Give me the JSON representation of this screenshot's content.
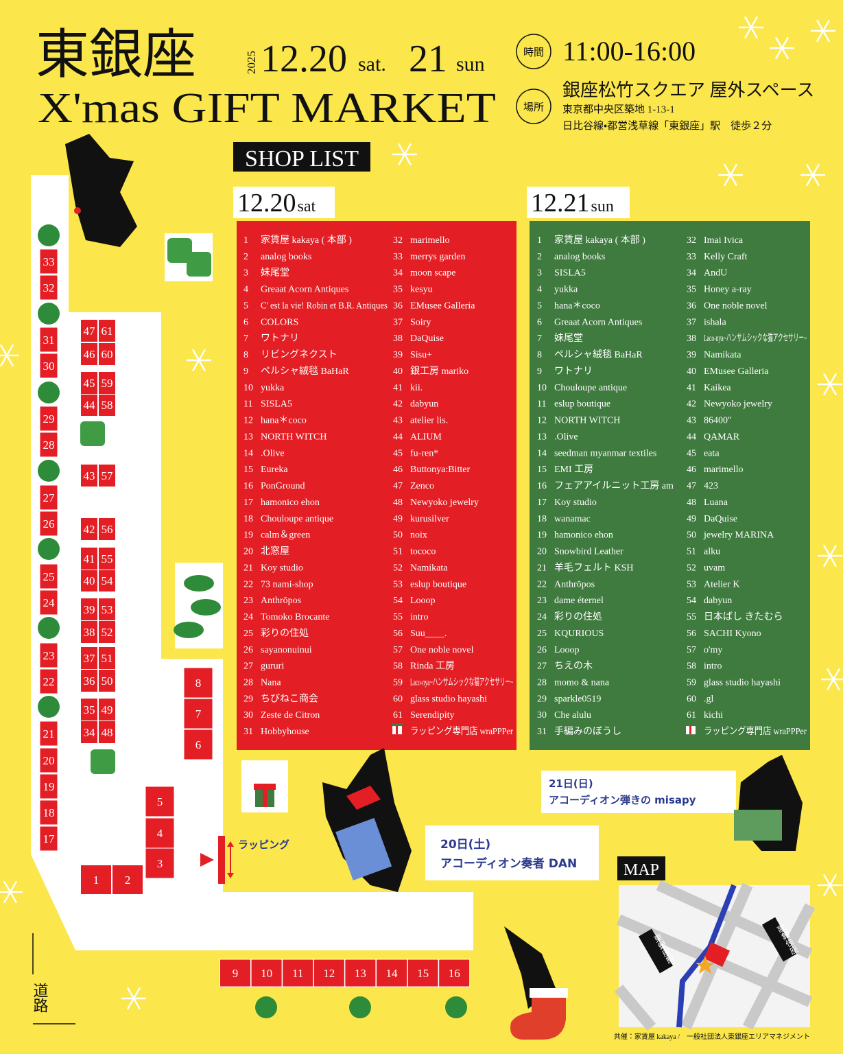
{
  "header": {
    "title_ja": "東銀座",
    "title_en": "X'mas GIFT MARKET",
    "year": "2025",
    "date1": "12.20",
    "dow1": "sat.",
    "date2": "21",
    "dow2": "sun",
    "time_label": "時間",
    "time": "11:00-16:00",
    "place_label": "場所",
    "venue": "銀座松竹スクエア 屋外スペース",
    "address": "東京都中央区築地 1-13-1",
    "access": "日比谷線・都営浅草線「東銀座」駅　徒歩２分"
  },
  "shop_list": {
    "heading": "SHOP LIST",
    "days": [
      {
        "date": "12.20",
        "dow": "sat",
        "shops": [
          {
            "no": 1,
            "name": "家賃屋 kakaya ( 本部 )"
          },
          {
            "no": 2,
            "name": "analog books"
          },
          {
            "no": 3,
            "name": "妹尾堂"
          },
          {
            "no": 4,
            "name": "Greaat Acorn Antiques"
          },
          {
            "no": 5,
            "name": "C' est la vie! Robin et B.R. Antiques"
          },
          {
            "no": 6,
            "name": "COLORS"
          },
          {
            "no": 7,
            "name": "ワトナリ"
          },
          {
            "no": 8,
            "name": "リビングネクスト"
          },
          {
            "no": 9,
            "name": "ペルシャ絨毯 BaHaR"
          },
          {
            "no": 10,
            "name": "yukka"
          },
          {
            "no": 11,
            "name": "SISLA5"
          },
          {
            "no": 12,
            "name": "hana＊coco"
          },
          {
            "no": 13,
            "name": "NORTH WITCH"
          },
          {
            "no": 14,
            "name": ".Olive"
          },
          {
            "no": 15,
            "name": "Eureka"
          },
          {
            "no": 16,
            "name": "PonGround"
          },
          {
            "no": 17,
            "name": "hamonico ehon"
          },
          {
            "no": 18,
            "name": "Chouloupe antique"
          },
          {
            "no": 19,
            "name": "calm＆green"
          },
          {
            "no": 20,
            "name": "北窓屋"
          },
          {
            "no": 21,
            "name": "Koy studio"
          },
          {
            "no": 22,
            "name": "73 nami-shop"
          },
          {
            "no": 23,
            "name": "Anthrōpos"
          },
          {
            "no": 24,
            "name": "Tomoko Brocante"
          },
          {
            "no": 25,
            "name": "彩りの住処"
          },
          {
            "no": 26,
            "name": "sayanonuinui"
          },
          {
            "no": 27,
            "name": "gururi"
          },
          {
            "no": 28,
            "name": "Nana"
          },
          {
            "no": 29,
            "name": "ちびねこ商会"
          },
          {
            "no": 30,
            "name": "Zeste de Citron"
          },
          {
            "no": 31,
            "name": "Hobbyhouse"
          },
          {
            "no": 32,
            "name": "marimello"
          },
          {
            "no": 33,
            "name": "merrys garden"
          },
          {
            "no": 34,
            "name": "moon scape"
          },
          {
            "no": 35,
            "name": "kesyu"
          },
          {
            "no": 36,
            "name": "EMusee Galleria"
          },
          {
            "no": 37,
            "name": "Soiry"
          },
          {
            "no": 38,
            "name": "DaQuise"
          },
          {
            "no": 39,
            "name": "Sisu+"
          },
          {
            "no": 40,
            "name": "銀工房 mariko"
          },
          {
            "no": 41,
            "name": "kii."
          },
          {
            "no": 42,
            "name": "dabyun"
          },
          {
            "no": 43,
            "name": "atelier lis."
          },
          {
            "no": 44,
            "name": "ALIUM"
          },
          {
            "no": 45,
            "name": "fu-ren*"
          },
          {
            "no": 46,
            "name": "Buttonya:Bitter"
          },
          {
            "no": 47,
            "name": "Zenco"
          },
          {
            "no": 48,
            "name": "Newyoko jewelry"
          },
          {
            "no": 49,
            "name": "kurusilver"
          },
          {
            "no": 50,
            "name": "noix"
          },
          {
            "no": 51,
            "name": "tococo"
          },
          {
            "no": 52,
            "name": "Namikata"
          },
          {
            "no": 53,
            "name": "eslup boutique"
          },
          {
            "no": 54,
            "name": "Looop"
          },
          {
            "no": 55,
            "name": "intro"
          },
          {
            "no": 56,
            "name": "Suu____."
          },
          {
            "no": 57,
            "name": "One noble novel"
          },
          {
            "no": 58,
            "name": "Rinda 工房"
          },
          {
            "no": 59,
            "name": "Laco-nya~ハンサムシックな猫アクセサリー~"
          },
          {
            "no": 60,
            "name": "glass studio hayashi"
          },
          {
            "no": 61,
            "name": "Serendipity"
          },
          {
            "name": "ラッピング専門店 wraPPPer"
          }
        ]
      },
      {
        "date": "12.21",
        "dow": "sun",
        "shops": [
          {
            "no": 1,
            "name": "家賃屋 kakaya ( 本部 )"
          },
          {
            "no": 2,
            "name": "analog books"
          },
          {
            "no": 3,
            "name": "SISLA5"
          },
          {
            "no": 4,
            "name": "yukka"
          },
          {
            "no": 5,
            "name": "hana＊coco"
          },
          {
            "no": 6,
            "name": "Greaat Acorn Antiques"
          },
          {
            "no": 7,
            "name": "妹尾堂"
          },
          {
            "no": 8,
            "name": "ペルシャ絨毯 BaHaR"
          },
          {
            "no": 9,
            "name": "ワトナリ"
          },
          {
            "no": 10,
            "name": "Chouloupe antique"
          },
          {
            "no": 11,
            "name": "eslup boutique"
          },
          {
            "no": 12,
            "name": "NORTH WITCH"
          },
          {
            "no": 13,
            "name": ".Olive"
          },
          {
            "no": 14,
            "name": "seedman myanmar  textiles"
          },
          {
            "no": 15,
            "name": "EMI 工房"
          },
          {
            "no": 16,
            "name": "フェアアイルニット工房 am"
          },
          {
            "no": 17,
            "name": "Koy studio"
          },
          {
            "no": 18,
            "name": "wanamac"
          },
          {
            "no": 19,
            "name": "hamonico ehon"
          },
          {
            "no": 20,
            "name": "Snowbird Leather"
          },
          {
            "no": 21,
            "name": "羊毛フェルト KSH"
          },
          {
            "no": 22,
            "name": "Anthrōpos"
          },
          {
            "no": 23,
            "name": "dame éternel"
          },
          {
            "no": 24,
            "name": "彩りの住処"
          },
          {
            "no": 25,
            "name": "KQURIOUS"
          },
          {
            "no": 26,
            "name": "Looop"
          },
          {
            "no": 27,
            "name": "ちえの木"
          },
          {
            "no": 28,
            "name": "momo & nana"
          },
          {
            "no": 29,
            "name": "sparkle0519"
          },
          {
            "no": 30,
            "name": "Che alulu"
          },
          {
            "no": 31,
            "name": "手編みのぼうし"
          },
          {
            "no": 32,
            "name": "Imai Ivica"
          },
          {
            "no": 33,
            "name": "Kelly Craft"
          },
          {
            "no": 34,
            "name": "AndU"
          },
          {
            "no": 35,
            "name": "Honey a-ray"
          },
          {
            "no": 36,
            "name": "One noble novel"
          },
          {
            "no": 37,
            "name": "ishala"
          },
          {
            "no": 38,
            "name": "Laco-nya~ハンサムシックな猫アクセサリー~"
          },
          {
            "no": 39,
            "name": "Namikata"
          },
          {
            "no": 40,
            "name": "EMusee Galleria"
          },
          {
            "no": 41,
            "name": "Kaikea"
          },
          {
            "no": 42,
            "name": "Newyoko jewelry"
          },
          {
            "no": 43,
            "name": "86400\""
          },
          {
            "no": 44,
            "name": "QAMAR"
          },
          {
            "no": 45,
            "name": "eata"
          },
          {
            "no": 46,
            "name": "marimello"
          },
          {
            "no": 47,
            "name": "423"
          },
          {
            "no": 48,
            "name": "Luana"
          },
          {
            "no": 49,
            "name": "DaQuise"
          },
          {
            "no": 50,
            "name": "jewelry MARINA"
          },
          {
            "no": 51,
            "name": "alku"
          },
          {
            "no": 52,
            "name": "uvam"
          },
          {
            "no": 53,
            "name": "Atelier K"
          },
          {
            "no": 54,
            "name": "dabyun"
          },
          {
            "no": 55,
            "name": "日本ばし きたむら"
          },
          {
            "no": 56,
            "name": "SACHI Kyono"
          },
          {
            "no": 57,
            "name": "o'my"
          },
          {
            "no": 58,
            "name": "intro"
          },
          {
            "no": 59,
            "name": "glass studio hayashi"
          },
          {
            "no": 60,
            "name": ".gl"
          },
          {
            "no": 61,
            "name": "kichi"
          },
          {
            "name": "ラッピング専門店 wraPPPer"
          }
        ]
      }
    ]
  },
  "floor_map": {
    "booths": [
      1,
      2,
      3,
      4,
      5,
      6,
      7,
      8,
      9,
      10,
      11,
      12,
      13,
      14,
      15,
      16,
      17,
      18,
      19,
      20,
      21,
      22,
      23,
      24,
      25,
      26,
      27,
      28,
      29,
      30,
      31,
      32,
      33,
      34,
      35,
      36,
      37,
      38,
      39,
      40,
      41,
      42,
      43,
      44,
      45,
      46,
      47,
      48,
      49,
      50,
      51,
      52,
      53,
      54,
      55,
      56,
      57,
      58,
      59,
      60,
      61
    ],
    "wrapping": "ラッピング",
    "road": "道路"
  },
  "events": [
    {
      "date": "20日(土)",
      "title": "アコーディオン奏者 DAN"
    },
    {
      "date": "21日(日)",
      "title": "アコーディオン弾きの misapy"
    }
  ],
  "access_map": {
    "heading": "MAP",
    "station": "東銀座駅",
    "landmark": "歌舞伎座"
  },
  "footer": "共催：家賃屋 kakaya /　一般社団法人東銀座エリアマネジメント"
}
